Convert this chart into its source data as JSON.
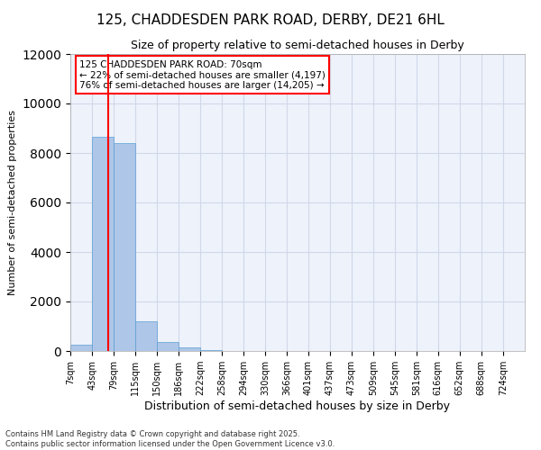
{
  "title_line1": "125, CHADDESDEN PARK ROAD, DERBY, DE21 6HL",
  "title_line2": "Size of property relative to semi-detached houses in Derby",
  "xlabel": "Distribution of semi-detached houses by size in Derby",
  "ylabel": "Number of semi-detached properties",
  "footer_line1": "Contains HM Land Registry data © Crown copyright and database right 2025.",
  "footer_line2": "Contains public sector information licensed under the Open Government Licence v3.0.",
  "annotation_title": "125 CHADDESDEN PARK ROAD: 70sqm",
  "annotation_line1": "← 22% of semi-detached houses are smaller (4,197)",
  "annotation_line2": "76% of semi-detached houses are larger (14,205) →",
  "property_size_sqm": 70,
  "bin_labels": [
    "7sqm",
    "43sqm",
    "79sqm",
    "115sqm",
    "150sqm",
    "186sqm",
    "222sqm",
    "258sqm",
    "294sqm",
    "330sqm",
    "366sqm",
    "401sqm",
    "437sqm",
    "473sqm",
    "509sqm",
    "545sqm",
    "581sqm",
    "616sqm",
    "652sqm",
    "688sqm",
    "724sqm"
  ],
  "bin_edges": [
    7,
    43,
    79,
    115,
    150,
    186,
    222,
    258,
    294,
    330,
    366,
    401,
    437,
    473,
    509,
    545,
    581,
    616,
    652,
    688,
    724
  ],
  "bar_values": [
    250,
    8650,
    8400,
    1200,
    350,
    150,
    50,
    0,
    0,
    0,
    0,
    0,
    0,
    0,
    0,
    0,
    0,
    0,
    0,
    0
  ],
  "bar_color": "#aec6e8",
  "bar_edge_color": "#5a9fd4",
  "grid_color": "#d0d8e8",
  "background_color": "#eef2fa",
  "vline_color": "red",
  "annotation_box_edge_color": "red",
  "ylim": [
    0,
    12000
  ],
  "yticks": [
    0,
    2000,
    4000,
    6000,
    8000,
    10000,
    12000
  ]
}
